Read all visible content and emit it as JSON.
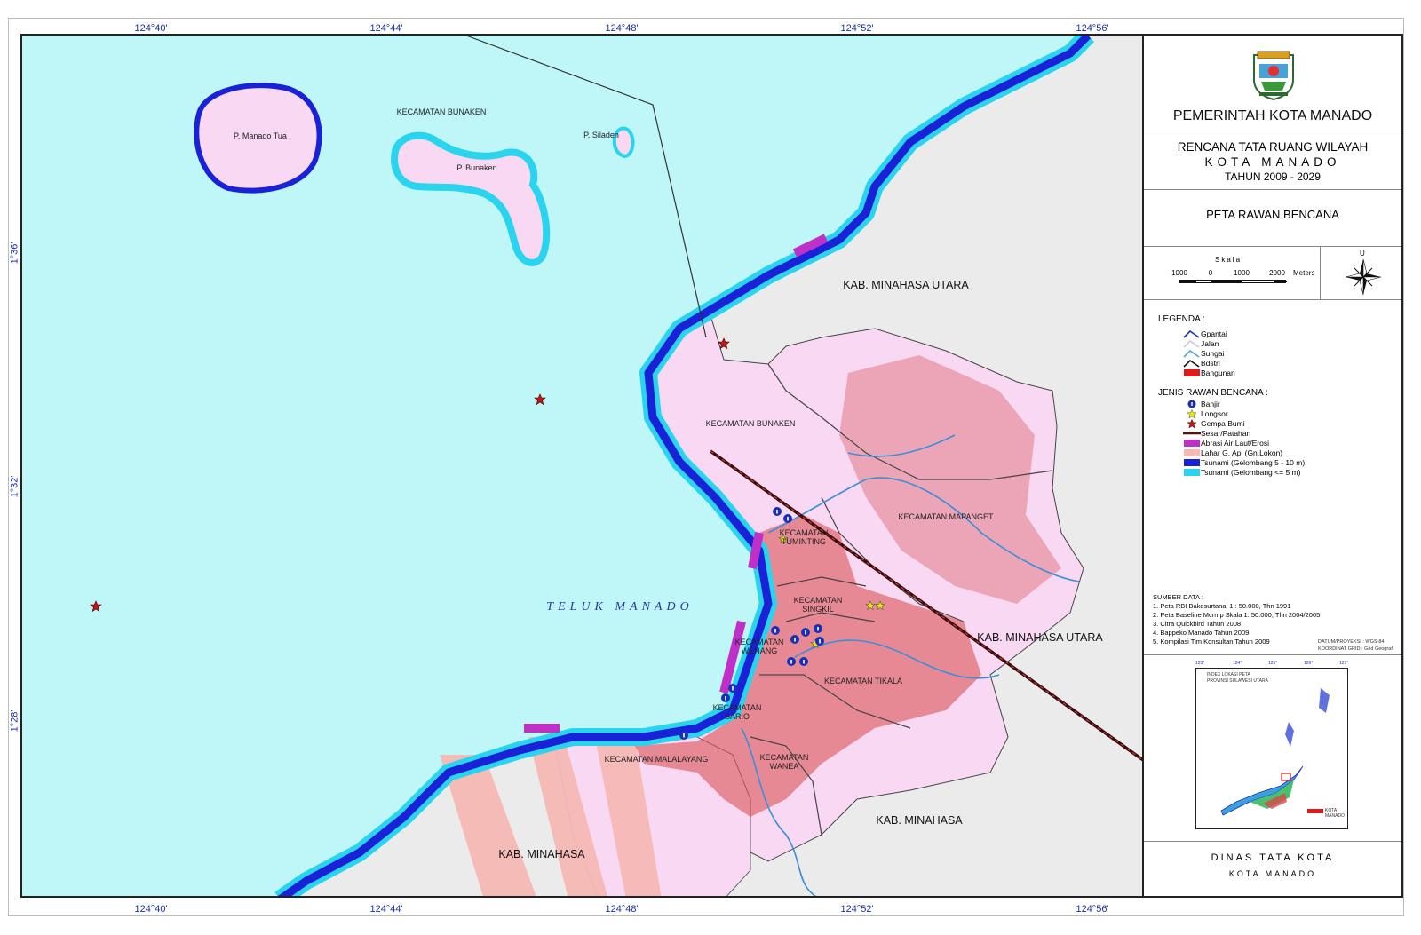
{
  "map": {
    "grid_top": [
      "124°40'",
      "124°44'",
      "124°48'",
      "124°52'",
      "124°56'"
    ],
    "grid_bottom": [
      "124°40'",
      "124°44'",
      "124°48'",
      "124°52'",
      "124°56'"
    ],
    "grid_left": [
      "1°36'",
      "1°32'",
      "1°28'"
    ],
    "labels": {
      "manado_tua": "P. Manado Tua",
      "kec_bunaken_sea": "KECAMATAN BUNAKEN",
      "p_bunaken": "P. Bunaken",
      "p_siladen": "P. Siladen",
      "kab_minut_top": "KAB. MINAHASA UTARA",
      "kec_bunaken": "KECAMATAN BUNAKEN",
      "kec_mapanget": "KECAMATAN MAPANGET",
      "kec_tuminting_1": "KECAMATAN",
      "kec_tuminting_2": "TUMINTING",
      "teluk": "TELUK MANADO",
      "kec_singkil_1": "KECAMATAN",
      "kec_singkil_2": "SINGKIL",
      "kab_minut_right": "KAB. MINAHASA UTARA",
      "kec_wenang_1": "KECAMATAN",
      "kec_wenang_2": "WENANG",
      "kec_tikala": "KECAMATAN TIKALA",
      "kec_sario_1": "KECAMATAN",
      "kec_sario_2": "SARIO",
      "kec_malalayang": "KECAMATAN MALALAYANG",
      "kec_wanea_1": "KECAMATAN",
      "kec_wanea_2": "WANEA",
      "kab_minahasa_right": "KAB. MINAHASA",
      "kab_minahasa_left": "KAB. MINAHASA"
    }
  },
  "panel": {
    "gov_title": "PEMERINTAH KOTA MANADO",
    "plan_line1": "RENCANA TATA RUANG WILAYAH",
    "plan_line2": "KOTA MANADO",
    "plan_line3": "TAHUN 2009 - 2029",
    "theme_title": "PETA RAWAN BENCANA",
    "scale_title": "Skala",
    "scale_ticks": [
      "1000",
      "0",
      "1000",
      "2000"
    ],
    "scale_unit": "Meters",
    "compass_label": "U",
    "legend_title": "LEGENDA :",
    "legend_items": [
      {
        "label": "Gpantai",
        "color": "#1a2fb8"
      },
      {
        "label": "Jalan",
        "color": "#c8c8e0"
      },
      {
        "label": "Sungai",
        "color": "#4aa3e0"
      },
      {
        "label": "Bdstrl",
        "color": "#111111"
      },
      {
        "label": "Bangunan",
        "color": "#e01a1a"
      }
    ],
    "hazard_title": "JENIS RAWAN BENCANA :",
    "hazard_items": [
      {
        "label": "Banjir",
        "color": "#1a2fb8"
      },
      {
        "label": "Longsor",
        "color": "#e8e800"
      },
      {
        "label": "Gempa Bumi",
        "color": "#c01818"
      },
      {
        "label": "Sesar/Patahan",
        "color": "#5a1010"
      },
      {
        "label": "Abrasi Air Laut/Erosi",
        "color": "#c030c8"
      },
      {
        "label": "Lahar G. Api (Gn.Lokon)",
        "color": "#f5b8b4"
      },
      {
        "label": "Tsunami (Gelombang 5 - 10 m)",
        "color": "#1a22d8"
      },
      {
        "label": "Tsunami (Gelombang <= 5 m)",
        "color": "#2ad4ee"
      }
    ],
    "source_title": "SUMBER DATA :",
    "sources": [
      "1. Peta RBI Bakosurtanal 1 : 50.000, Thn 1991",
      "2. Peta Baseline Mcrmp Skala 1: 50.000, Thn 2004/2005",
      "3. Citra Quickbird Tahun 2008",
      "4. Bappeko Manado Tahun 2009",
      "5. Kompilasi Tim Konsultan Tahun 2009"
    ],
    "datum_1": "DATUM/PROYEKSI : WGS-84",
    "datum_2": "KOORDINAT GRID : Grid Geografi",
    "index_title_1": "INDEX LOKASI PETA",
    "index_title_2": "PROVINSI SULAWESI UTARA",
    "index_legend": "KOTA MANADO",
    "index_ticks": [
      "123°",
      "124°",
      "125°",
      "126°",
      "127°"
    ],
    "footer_1": "DINAS TATA KOTA",
    "footer_2": "KOTA MANADO"
  },
  "colors": {
    "sea": "#bff6f8",
    "land_city": "#f8d8f2",
    "land_outside": "#ebebeb",
    "tsunami_high": "#1a22d8",
    "tsunami_low": "#2ad4ee",
    "abrasion": "#c030c8",
    "lahar": "#f5b8b4",
    "buildings": "#d84848",
    "river": "#3a8fd8",
    "fault": "#3a0a0a"
  }
}
